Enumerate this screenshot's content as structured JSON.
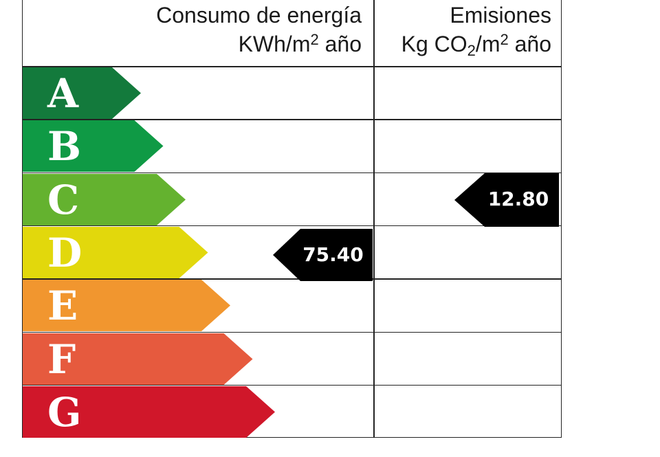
{
  "header": {
    "energy_line1": "Consumo de energía",
    "energy_line2_a": "KWh/m",
    "energy_line2_sup": "2",
    "energy_line2_b": " año",
    "emissions_line1": "Emisiones",
    "emissions_line2_a": "Kg CO",
    "emissions_line2_sub": "2",
    "emissions_line2_b": "/m",
    "emissions_line2_sup": "2",
    "emissions_line2_c": " año"
  },
  "grades": [
    {
      "letter": "A",
      "color": "#137a3c"
    },
    {
      "letter": "B",
      "color": "#0f9a45"
    },
    {
      "letter": "C",
      "color": "#64b22f"
    },
    {
      "letter": "D",
      "color": "#e2d80c"
    },
    {
      "letter": "E",
      "color": "#f1962f"
    },
    {
      "letter": "F",
      "color": "#e65a3e"
    },
    {
      "letter": "G",
      "color": "#d0172a"
    }
  ],
  "energy_rating": {
    "grade": "D",
    "value": "75.40"
  },
  "emissions_rating": {
    "grade": "C",
    "value": "12.80"
  }
}
